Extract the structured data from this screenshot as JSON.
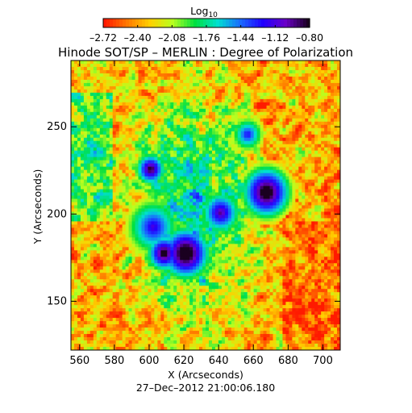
{
  "chart_data": {
    "type": "heatmap",
    "title": "Hinode SOT/SP – MERLIN : Degree of Polarization",
    "xlabel": "X (Arcseconds)",
    "ylabel": "Y (Arcseconds)",
    "timestamp": "27–Dec–2012 21:00:06.180",
    "xlim": [
      555,
      710
    ],
    "ylim": [
      122,
      288
    ],
    "x_ticks": [
      560,
      580,
      600,
      620,
      640,
      660,
      680,
      700
    ],
    "y_ticks": [
      150,
      200,
      250
    ],
    "x_tick_labels": [
      "560",
      "580",
      "600",
      "620",
      "640",
      "660",
      "680",
      "700"
    ],
    "y_tick_labels": [
      "150",
      "200",
      "250"
    ],
    "colorbar": {
      "title_base": "Log",
      "title_sub": "10",
      "range": [
        -2.72,
        -0.8
      ],
      "ticks": [
        -2.72,
        -2.4,
        -2.08,
        -1.76,
        -1.44,
        -1.12,
        -0.8
      ],
      "tick_labels": [
        "–2.72",
        "–2.40",
        "–2.08",
        "–1.76",
        "–1.44",
        "–1.12",
        "–0.80"
      ],
      "colormap": [
        "#ff1a00",
        "#ff7a00",
        "#ffd000",
        "#b8ff20",
        "#00e040",
        "#00e0d0",
        "#1a6bff",
        "#2000ff",
        "#6a00c8",
        "#1a0020"
      ]
    }
  }
}
